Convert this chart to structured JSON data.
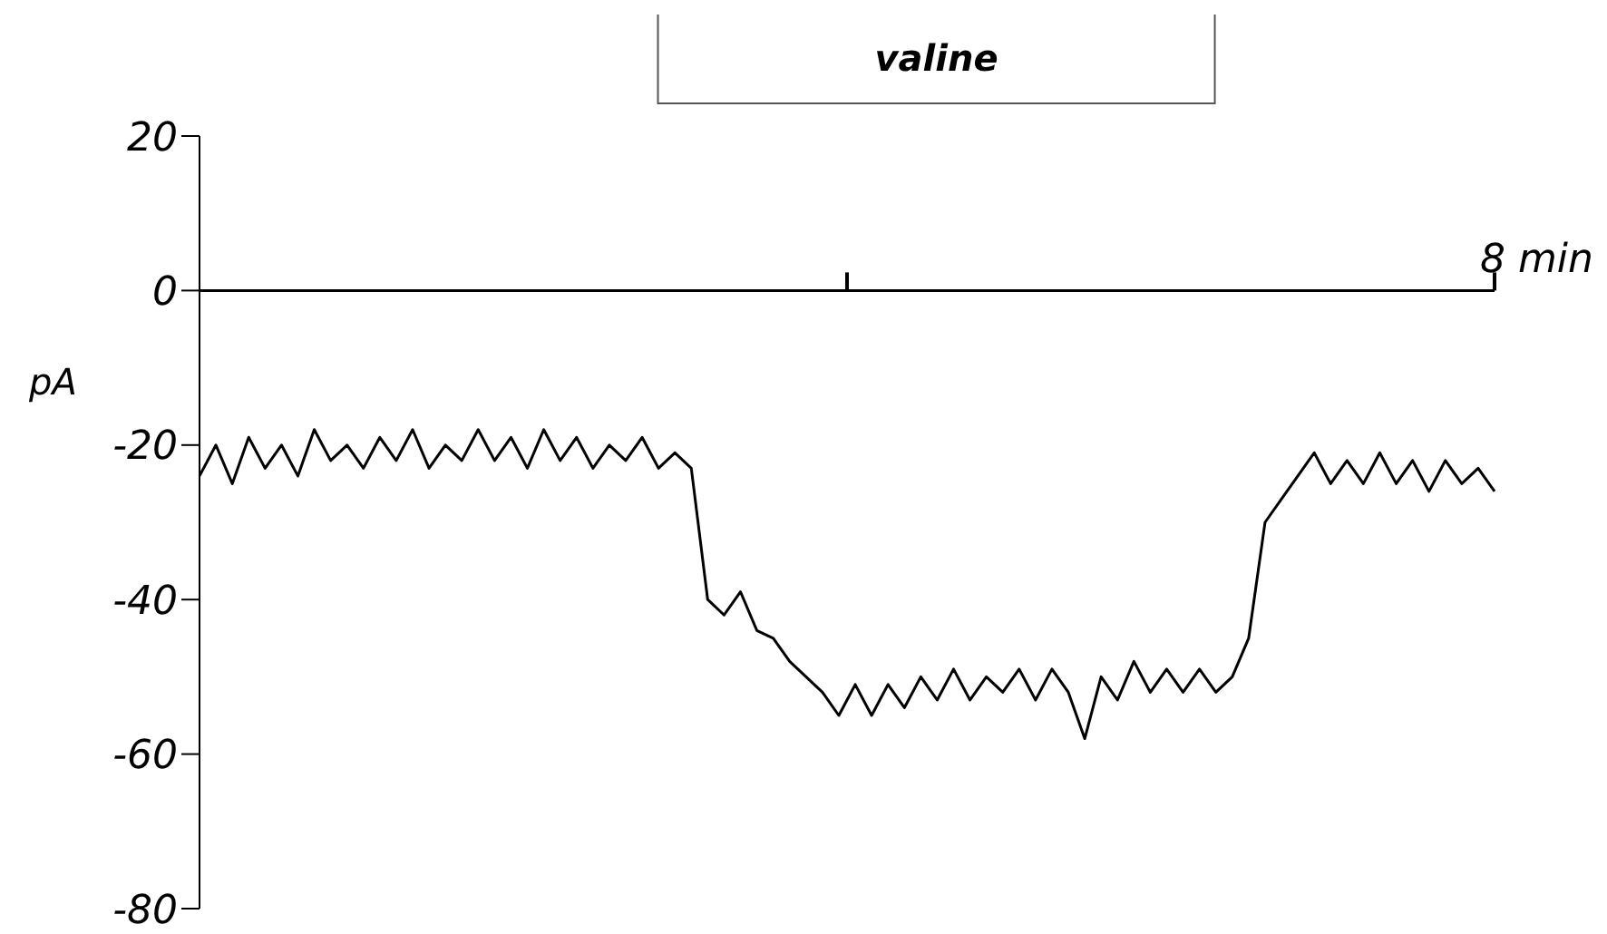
{
  "chart_data": {
    "type": "line",
    "ylabel": "pA",
    "annotations": [
      "valine",
      "8 min"
    ],
    "ylim": [
      -80,
      20
    ],
    "yticks": [
      20,
      0,
      -20,
      -40,
      -60,
      -80
    ],
    "grid": false,
    "ref_lines": [
      {
        "axis": "y",
        "value": 0,
        "color": "#000000",
        "line_style": "solid"
      }
    ],
    "legend": false,
    "marker": "none",
    "line_style": "solid",
    "categories": [
      null,
      null,
      null,
      null,
      null,
      null,
      null,
      null,
      null,
      null,
      null,
      null,
      null,
      null,
      null,
      null,
      null,
      null,
      null,
      null,
      null,
      null,
      null,
      null,
      null,
      null,
      null,
      null,
      null,
      null,
      null,
      null,
      null,
      null,
      null,
      null,
      null,
      null,
      null,
      null,
      null,
      null,
      null,
      null,
      null,
      null,
      null,
      null,
      null,
      null,
      null,
      null,
      null,
      null,
      null,
      null,
      null,
      null,
      null,
      null,
      null,
      null,
      null,
      null,
      null,
      null,
      null,
      null,
      null,
      null,
      null,
      null,
      null,
      null,
      null,
      null,
      null,
      null,
      null,
      null
    ],
    "series": [
      {
        "color": "#000000",
        "values": [
          -24,
          -20,
          -25,
          -19,
          -23,
          -20,
          -24,
          -18,
          -22,
          -20,
          -23,
          -19,
          -22,
          -18,
          -23,
          -20,
          -22,
          -18,
          -22,
          -19,
          -23,
          -18,
          -22,
          -19,
          -23,
          -20,
          -22,
          -19,
          -23,
          -21,
          -23,
          -40,
          -42,
          -39,
          -44,
          -45,
          -48,
          -50,
          -52,
          -55,
          -51,
          -55,
          -51,
          -54,
          -50,
          -53,
          -49,
          -53,
          -50,
          -52,
          -49,
          -53,
          -49,
          -52,
          -58,
          -50,
          -53,
          -48,
          -52,
          -49,
          -52,
          -49,
          -52,
          -50,
          -45,
          -30,
          -27,
          -24,
          -21,
          -25,
          -22,
          -25,
          -21,
          -25,
          -22,
          -26,
          -22,
          -25,
          -23,
          -26
        ]
      }
    ]
  }
}
